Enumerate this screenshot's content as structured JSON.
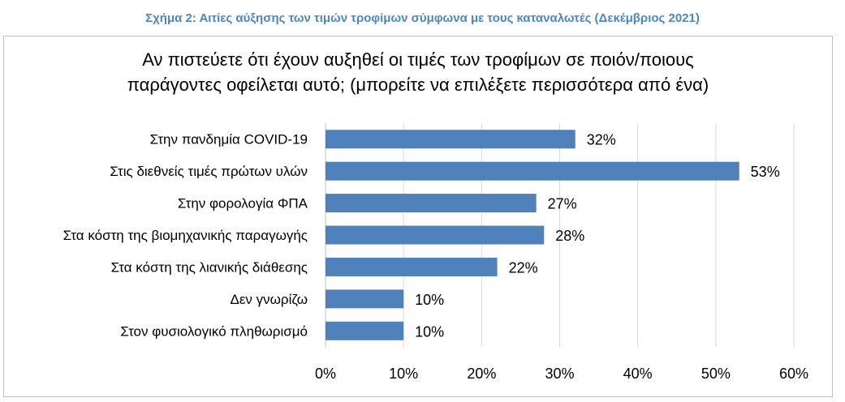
{
  "figure_caption": "Σχήμα 2: Αιτίες αύξησης των τιμών τροφίμων σύμφωνα με τους καταναλωτές (Δεκέμβριος 2021)",
  "chart_data": {
    "type": "bar",
    "orientation": "horizontal",
    "title_lines": [
      "Αν πιστεύετε ότι έχουν αυξηθεί οι τιμές των τροφίμων σε ποιόν/ποιους",
      "παράγοντες οφείλεται αυτό; (μπορείτε να επιλέξετε περισσότερα από ένα)"
    ],
    "categories": [
      "Στην πανδημία COVID-19",
      "Στις διεθνείς τιμές πρώτων υλών",
      "Στην φορολογία ΦΠΑ",
      "Στα κόστη της βιομηχανικής παραγωγής",
      "Στα κόστη της λιανικής διάθεσης",
      "Δεν γνωρίζω",
      "Στον φυσιολογικό πληθωρισμό"
    ],
    "values": [
      32,
      53,
      27,
      28,
      22,
      10,
      10
    ],
    "data_labels": [
      "32%",
      "53%",
      "27%",
      "28%",
      "22%",
      "10%",
      "10%"
    ],
    "xlim": [
      0,
      60
    ],
    "x_ticks": [
      0,
      10,
      20,
      30,
      40,
      50,
      60
    ],
    "x_tick_labels": [
      "0%",
      "10%",
      "20%",
      "30%",
      "40%",
      "50%",
      "60%"
    ],
    "grid": "vertical",
    "legend": "none",
    "bar_color": "#4f81bd",
    "gridline_color": "#d9d9d9"
  }
}
